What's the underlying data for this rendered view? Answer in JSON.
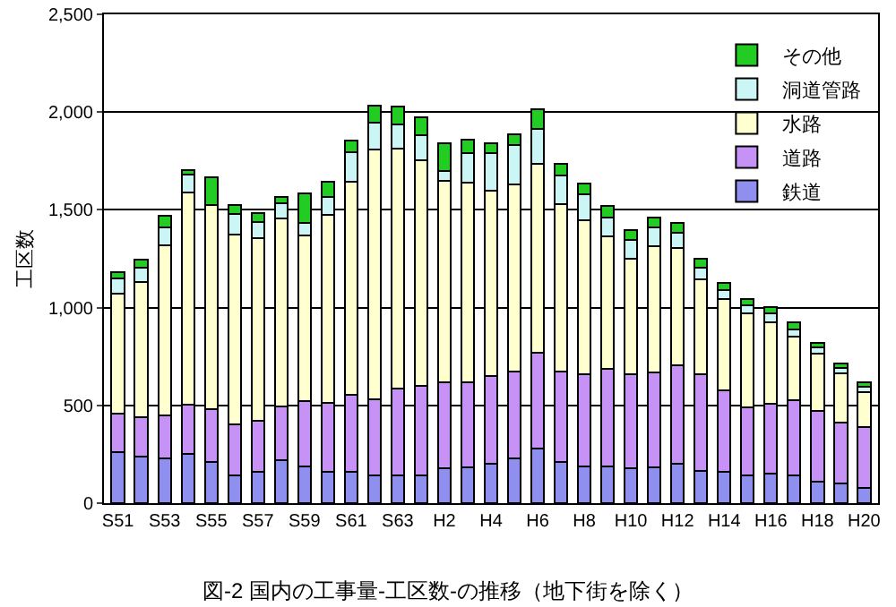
{
  "chart_data": {
    "type": "bar",
    "stacked": true,
    "title": "図-2 国内の工事量-工区数-の推移（地下街を除く）",
    "ylabel": "工区数",
    "categories": [
      "S51",
      null,
      "S53",
      null,
      "S55",
      null,
      "S57",
      null,
      "S59",
      null,
      "S61",
      null,
      "S63",
      null,
      "H2",
      null,
      "H4",
      null,
      "H6",
      null,
      "H8",
      null,
      "H10",
      null,
      "H12",
      null,
      "H14",
      null,
      "H16",
      null,
      "H18",
      null,
      "H20"
    ],
    "series": [
      {
        "name": "鉄道",
        "color": "#8f8fef",
        "values": [
          260,
          240,
          230,
          250,
          210,
          140,
          160,
          220,
          190,
          160,
          160,
          140,
          140,
          140,
          180,
          185,
          200,
          230,
          280,
          210,
          190,
          190,
          180,
          185,
          200,
          165,
          160,
          140,
          150,
          140,
          110,
          100,
          80
        ]
      },
      {
        "name": "道路",
        "color": "#c792f5",
        "values": [
          200,
          200,
          220,
          255,
          270,
          265,
          260,
          275,
          330,
          355,
          395,
          390,
          445,
          460,
          440,
          435,
          450,
          445,
          490,
          465,
          470,
          495,
          480,
          485,
          505,
          495,
          415,
          350,
          360,
          385,
          360,
          310,
          310
        ]
      },
      {
        "name": "水路",
        "color": "#ffffd0",
        "values": [
          610,
          690,
          870,
          1085,
          1045,
          970,
          935,
          960,
          850,
          960,
          1090,
          1280,
          1230,
          1155,
          1030,
          1020,
          950,
          955,
          965,
          855,
          785,
          680,
          590,
          645,
          600,
          485,
          470,
          480,
          415,
          325,
          295,
          255,
          180
        ]
      },
      {
        "name": "洞道管路",
        "color": "#ccf5f5",
        "values": [
          80,
          75,
          90,
          90,
          0,
          105,
          85,
          80,
          65,
          90,
          150,
          135,
          120,
          125,
          50,
          150,
          190,
          200,
          180,
          145,
          135,
          95,
          95,
          95,
          80,
          60,
          45,
          40,
          45,
          40,
          30,
          25,
          25
        ]
      },
      {
        "name": "その他",
        "color": "#22cc22",
        "values": [
          30,
          40,
          60,
          25,
          140,
          45,
          45,
          30,
          150,
          80,
          60,
          90,
          95,
          95,
          140,
          70,
          50,
          55,
          100,
          60,
          55,
          60,
          50,
          50,
          50,
          45,
          35,
          35,
          35,
          35,
          25,
          25,
          25
        ]
      }
    ],
    "ylim": [
      0,
      2500
    ],
    "yticks": [
      0,
      500,
      {
        "value": 1000,
        "label": "1,000"
      },
      {
        "value": 1500,
        "label": "1,500"
      },
      {
        "value": 2000,
        "label": "2,000"
      },
      {
        "value": 2500,
        "label": "2,500"
      }
    ],
    "grid": "y",
    "legend": "top right"
  }
}
